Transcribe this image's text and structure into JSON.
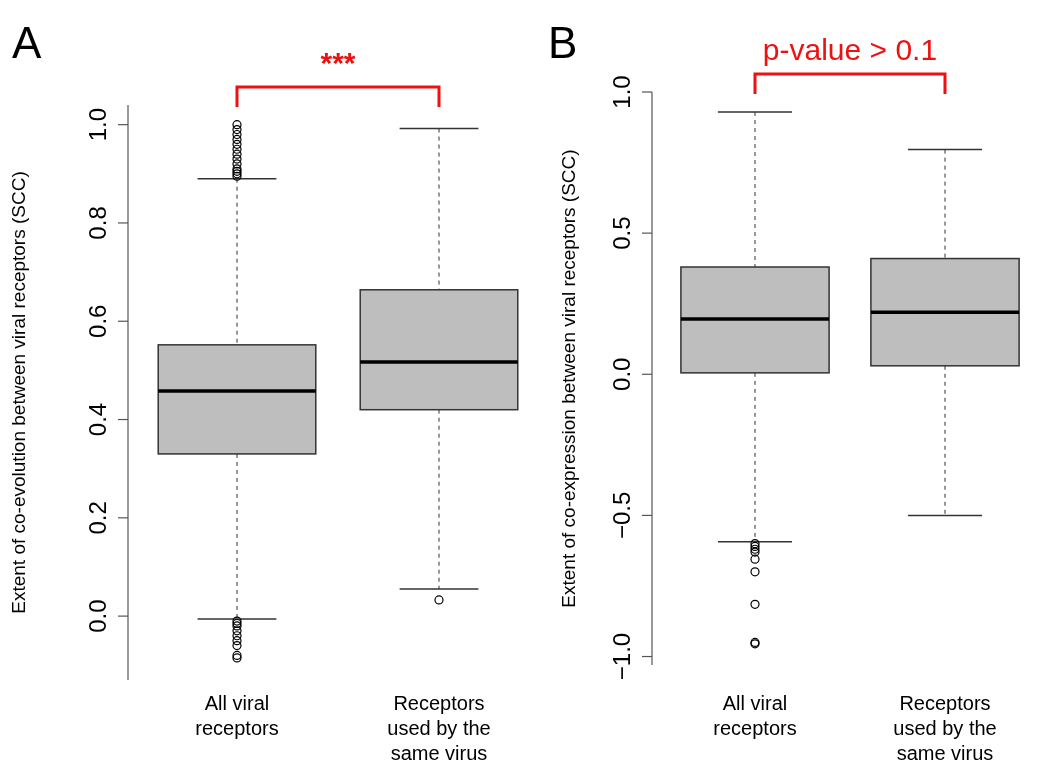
{
  "chart_data": [
    {
      "type": "box",
      "title": "A",
      "ylabel": "Extent of co-evolution between viral receptors (SCC)",
      "categories": [
        "All viral receptors",
        "Receptors used by the same virus"
      ],
      "ylim": [
        -0.13,
        1.04
      ],
      "yticks": [
        {
          "value": 0,
          "label": "0.0"
        },
        0.2,
        0.4,
        0.6,
        0.8,
        {
          "value": 1,
          "label": "1.0"
        }
      ],
      "annotations": [
        "***"
      ],
      "series": [
        {
          "color": "#bebebe",
          "boxes": [
            {
              "low": -0.006,
              "q1": 0.33,
              "median": 0.458,
              "q3": 0.552,
              "high": 0.89,
              "outliers": [
                0.895,
                0.9,
                0.905,
                0.91,
                0.92,
                0.93,
                0.94,
                0.95,
                0.96,
                0.97,
                0.98,
                0.99,
                1.0,
                -0.01,
                -0.015,
                -0.02,
                -0.03,
                -0.04,
                -0.05,
                -0.06,
                -0.08,
                -0.085
              ]
            },
            {
              "low": 0.055,
              "q1": 0.42,
              "median": 0.517,
              "q3": 0.664,
              "high": 0.992,
              "outliers": [
                0.033
              ]
            }
          ]
        }
      ]
    },
    {
      "type": "box",
      "title": "B",
      "ylabel": "Extent of co-expression between viral receptors (SCC)",
      "categories": [
        "All viral receptors",
        "Receptors used by the same virus"
      ],
      "ylim": [
        -1.03,
        1.0
      ],
      "yticks": [
        {
          "value": -1,
          "label": "−1.0"
        },
        {
          "value": -0.5,
          "label": "−0.5"
        },
        {
          "value": 0,
          "label": "0.0"
        },
        0.5,
        {
          "value": 1,
          "label": "1.0"
        }
      ],
      "annotations": [
        "p-value > 0.1"
      ],
      "series": [
        {
          "color": "#bebebe",
          "boxes": [
            {
              "low": -0.593,
              "q1": 0.005,
              "median": 0.196,
              "q3": 0.38,
              "high": 0.929,
              "outliers": [
                -0.6,
                -0.61,
                -0.62,
                -0.63,
                -0.655,
                -0.7,
                -0.815,
                -0.95,
                -0.955
              ]
            },
            {
              "low": -0.5,
              "q1": 0.03,
              "median": 0.22,
              "q3": 0.41,
              "high": 0.796
            }
          ]
        }
      ]
    }
  ]
}
